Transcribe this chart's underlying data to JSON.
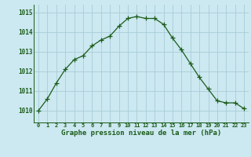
{
  "hours": [
    0,
    1,
    2,
    3,
    4,
    5,
    6,
    7,
    8,
    9,
    10,
    11,
    12,
    13,
    14,
    15,
    16,
    17,
    18,
    19,
    20,
    21,
    22,
    23
  ],
  "pressure": [
    1010.0,
    1010.6,
    1011.4,
    1012.1,
    1012.6,
    1012.8,
    1013.3,
    1013.6,
    1013.8,
    1014.3,
    1014.7,
    1014.8,
    1014.7,
    1014.7,
    1014.4,
    1013.7,
    1013.1,
    1012.4,
    1011.7,
    1011.1,
    1010.5,
    1010.4,
    1010.4,
    1010.1
  ],
  "line_color": "#1a5c1a",
  "marker_color": "#1a5c1a",
  "bg_color": "#cce8f0",
  "grid_color": "#a8cdd8",
  "axis_label_color": "#1a5c1a",
  "tick_color": "#1a5c1a",
  "xlabel": "Graphe pression niveau de la mer (hPa)",
  "ylim": [
    1009.4,
    1015.4
  ],
  "yticks": [
    1010,
    1011,
    1012,
    1013,
    1014,
    1015
  ],
  "xlim": [
    -0.5,
    23.5
  ]
}
